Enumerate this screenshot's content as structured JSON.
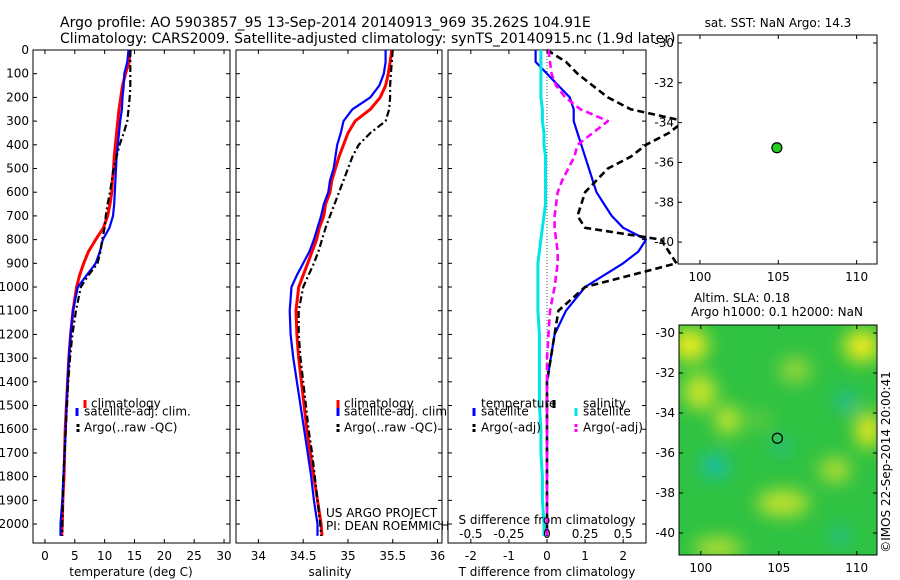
{
  "header": {
    "title_line1": "Argo profile: AO 5903857_95 13-Sep-2014 20140913_969 35.262S 104.91E",
    "title_line2": "Climatology: CARS2009. Satellite-adjusted climatology: synTS_20140915.nc (1.9d later)"
  },
  "colors": {
    "climatology": "#ff0000",
    "satellite": "#0000ff",
    "argo": "#000000",
    "s_sat": "#00e5e5",
    "s_argo": "#ff00ff",
    "map_marker": "#22cc22"
  },
  "footer": {
    "project_line1": "US ARGO PROJECT",
    "project_line2": "PI: DEAN ROEMMICH",
    "imos_stamp": "©IMOS 22-Sep-2014 20:00:41"
  },
  "chart_data": [
    {
      "type": "line",
      "id": "temperature",
      "xlabel": "temperature (deg C)",
      "xlim": [
        -2,
        31
      ],
      "ylim": [
        2080,
        0
      ],
      "xticks": [
        "0",
        "5",
        "10",
        "15",
        "20",
        "25",
        "30"
      ],
      "xtick_values": [
        0,
        5,
        10,
        15,
        20,
        25,
        30
      ],
      "yticks": [
        "0",
        "100",
        "200",
        "300",
        "400",
        "500",
        "600",
        "700",
        "800",
        "900",
        "1000",
        "1100",
        "1200",
        "1300",
        "1400",
        "1500",
        "1600",
        "1700",
        "1800",
        "1900",
        "2000"
      ],
      "ytick_values": [
        0,
        100,
        200,
        300,
        400,
        500,
        600,
        700,
        800,
        900,
        1000,
        1100,
        1200,
        1300,
        1400,
        1500,
        1600,
        1700,
        1800,
        1900,
        2000
      ],
      "depth": [
        0,
        50,
        100,
        150,
        200,
        250,
        300,
        350,
        400,
        450,
        500,
        550,
        600,
        650,
        700,
        750,
        800,
        850,
        900,
        950,
        1000,
        1100,
        1200,
        1300,
        1400,
        1500,
        1600,
        1700,
        1800,
        1900,
        2000,
        2050
      ],
      "series": [
        {
          "name": "climatology",
          "values": [
            14.3,
            14.1,
            13.5,
            13.0,
            12.7,
            12.4,
            12.2,
            12.0,
            11.8,
            11.6,
            11.5,
            11.3,
            11.2,
            10.9,
            10.5,
            9.8,
            8.5,
            7.3,
            6.5,
            5.8,
            5.3,
            4.7,
            4.3,
            4.0,
            3.8,
            3.6,
            3.4,
            3.3,
            3.2,
            3.0,
            2.9,
            2.8
          ]
        },
        {
          "name": "satellite-adj. clim.",
          "values": [
            14.0,
            13.8,
            13.3,
            13.2,
            13.0,
            12.9,
            12.6,
            12.4,
            12.2,
            12.0,
            11.9,
            11.8,
            11.7,
            11.6,
            11.4,
            10.8,
            9.7,
            9.2,
            8.5,
            7.0,
            5.5,
            4.7,
            4.3,
            4.0,
            3.8,
            3.6,
            3.5,
            3.3,
            3.1,
            2.9,
            2.6,
            2.6
          ]
        },
        {
          "name": "Argo(..raw -QC)",
          "values": [
            14.3,
            14.3,
            14.3,
            14.3,
            14.2,
            14.0,
            13.8,
            13.2,
            12.5,
            12.0,
            11.5,
            11.2,
            10.9,
            10.5,
            10.2,
            10.0,
            9.6,
            9.3,
            8.8,
            7.3,
            6.0,
            5.2,
            4.6,
            4.2,
            3.9,
            3.7,
            3.5,
            3.3,
            3.1,
            3.0,
            2.9,
            2.9
          ]
        }
      ],
      "legend": [
        "climatology",
        "satellite-adj. clim.",
        "Argo(..raw -QC)"
      ]
    },
    {
      "type": "line",
      "id": "salinity",
      "xlabel": "salinity",
      "xlim": [
        33.75,
        36.05
      ],
      "ylim": [
        2080,
        0
      ],
      "xticks": [
        "34",
        "34.5",
        "35",
        "35.5",
        "36"
      ],
      "xtick_values": [
        34,
        34.5,
        35,
        35.5,
        36
      ],
      "depth": [
        0,
        50,
        100,
        150,
        200,
        250,
        300,
        350,
        400,
        450,
        500,
        550,
        600,
        650,
        700,
        750,
        800,
        850,
        900,
        950,
        1000,
        1100,
        1200,
        1300,
        1400,
        1500,
        1600,
        1700,
        1800,
        1900,
        2000,
        2050
      ],
      "series": [
        {
          "name": "climatology",
          "values": [
            35.49,
            35.47,
            35.45,
            35.42,
            35.36,
            35.25,
            35.08,
            35.0,
            34.95,
            34.9,
            34.86,
            34.82,
            34.8,
            34.75,
            34.73,
            34.68,
            34.65,
            34.6,
            34.55,
            34.5,
            34.45,
            34.42,
            34.43,
            34.45,
            34.48,
            34.51,
            34.54,
            34.58,
            34.62,
            34.66,
            34.7,
            34.71
          ]
        },
        {
          "name": "satellite-adj. clim.",
          "values": [
            35.42,
            35.42,
            35.4,
            35.35,
            35.25,
            35.05,
            34.95,
            34.92,
            34.88,
            34.86,
            34.84,
            34.8,
            34.78,
            34.73,
            34.7,
            34.66,
            34.62,
            34.57,
            34.5,
            34.43,
            34.37,
            34.35,
            34.36,
            34.39,
            34.43,
            34.47,
            34.51,
            34.55,
            34.59,
            34.62,
            34.66,
            34.66
          ]
        },
        {
          "name": "Argo(..raw -QC)",
          "values": [
            35.5,
            35.49,
            35.48,
            35.47,
            35.47,
            35.46,
            35.42,
            35.25,
            35.12,
            35.05,
            35.0,
            34.95,
            34.9,
            34.85,
            34.8,
            34.75,
            34.71,
            34.67,
            34.62,
            34.56,
            34.5,
            34.45,
            34.45,
            34.47,
            34.5,
            34.53,
            34.56,
            34.6,
            34.63,
            34.66,
            34.69,
            34.7
          ]
        }
      ],
      "legend": [
        "climatology",
        "satellite-adj. clim.",
        "Argo(..raw -QC)"
      ]
    },
    {
      "type": "line",
      "id": "differences",
      "xlabel": "T difference from climatology",
      "xlabel_top": "S difference from climatology",
      "xlim": [
        -2.6,
        2.6
      ],
      "ylim": [
        2080,
        0
      ],
      "xticks": [
        "-2",
        "-1",
        "0",
        "1",
        "2"
      ],
      "xtick_values": [
        -2,
        -1,
        0,
        1,
        2
      ],
      "top_xticks": [
        "-0.5",
        "-0.25",
        "0",
        "0.25",
        "0.5"
      ],
      "top_xtick_values": [
        -0.5,
        -0.25,
        0,
        0.25,
        0.5
      ],
      "depth": [
        0,
        50,
        100,
        150,
        200,
        250,
        300,
        350,
        400,
        450,
        500,
        550,
        600,
        650,
        700,
        750,
        800,
        850,
        900,
        950,
        1000,
        1100,
        1200,
        1300,
        1400,
        1500,
        1600,
        1700,
        1800,
        1900,
        2000,
        2050
      ],
      "series": [
        {
          "name": "temperature satellite",
          "values": [
            -0.3,
            -0.3,
            0.0,
            0.3,
            0.6,
            0.7,
            0.7,
            0.8,
            0.9,
            1.0,
            1.1,
            1.2,
            1.3,
            1.5,
            1.7,
            2.0,
            2.6,
            2.4,
            2.0,
            1.5,
            1.0,
            0.5,
            0.2,
            0.1,
            0.0,
            0.0,
            0.0,
            0.0,
            0.0,
            0.0,
            0.0,
            0.0
          ]
        },
        {
          "name": "temperature Argo(-adj)",
          "values": [
            0.0,
            0.5,
            0.8,
            1.2,
            1.6,
            2.2,
            3.6,
            3.2,
            2.6,
            2.2,
            1.6,
            1.3,
            1.0,
            0.9,
            0.8,
            1.0,
            3.0,
            3.2,
            3.4,
            2.2,
            1.0,
            0.3,
            0.2,
            0.1,
            0.0,
            0.0,
            0.0,
            0.0,
            0.0,
            0.0,
            0.0,
            0.0
          ]
        },
        {
          "name": "salinity satellite",
          "values": [
            -0.04,
            -0.04,
            -0.04,
            -0.04,
            -0.04,
            -0.03,
            -0.03,
            -0.02,
            -0.02,
            -0.01,
            -0.01,
            -0.01,
            -0.01,
            -0.01,
            -0.02,
            -0.03,
            -0.04,
            -0.05,
            -0.06,
            -0.06,
            -0.06,
            -0.06,
            -0.05,
            -0.05,
            -0.05,
            -0.05,
            -0.04,
            -0.04,
            -0.03,
            -0.03,
            -0.02,
            -0.02
          ]
        },
        {
          "name": "salinity Argo(-adj)",
          "values": [
            0.01,
            0.02,
            0.03,
            0.06,
            0.12,
            0.22,
            0.4,
            0.3,
            0.2,
            0.18,
            0.14,
            0.1,
            0.07,
            0.06,
            0.05,
            0.05,
            0.06,
            0.07,
            0.07,
            0.06,
            0.05,
            0.02,
            0.01,
            0.0,
            0.0,
            0.0,
            0.0,
            0.0,
            0.0,
            0.0,
            0.0,
            0.0
          ]
        }
      ],
      "legend_groups": [
        {
          "heading": "temperature",
          "items": [
            "satellite",
            "Argo(-adj)"
          ]
        },
        {
          "heading": "salinity",
          "items": [
            "satellite",
            "Argo(-adj)"
          ]
        }
      ]
    },
    {
      "type": "scatter",
      "id": "sst_map",
      "title": "sat. SST: NaN Argo: 14.3",
      "xlim": [
        98.6,
        111.3
      ],
      "ylim": [
        -41.1,
        -29.6
      ],
      "xticks": [
        "100",
        "105",
        "110"
      ],
      "xtick_values": [
        100,
        105,
        110
      ],
      "yticks": [
        "-30",
        "-32",
        "-34",
        "-36",
        "-38",
        "-40"
      ],
      "ytick_values": [
        -30,
        -32,
        -34,
        -36,
        -38,
        -40
      ],
      "points": [
        {
          "x": 104.91,
          "y": -35.262
        }
      ]
    },
    {
      "type": "heatmap",
      "id": "sla_map",
      "title_line1": "Altim. SLA: 0.18",
      "title_line2": "Argo h1000: 0.1 h2000: NaN",
      "xlim": [
        98.6,
        111.3
      ],
      "ylim": [
        -41.1,
        -29.6
      ],
      "xticks": [
        "100",
        "105",
        "110"
      ],
      "xtick_values": [
        100,
        105,
        110
      ],
      "yticks": [
        "-30",
        "-32",
        "-34",
        "-36",
        "-38",
        "-40"
      ],
      "ytick_values": [
        -30,
        -32,
        -34,
        -36,
        -38,
        -40
      ],
      "points": [
        {
          "x": 104.91,
          "y": -35.262
        }
      ]
    }
  ]
}
